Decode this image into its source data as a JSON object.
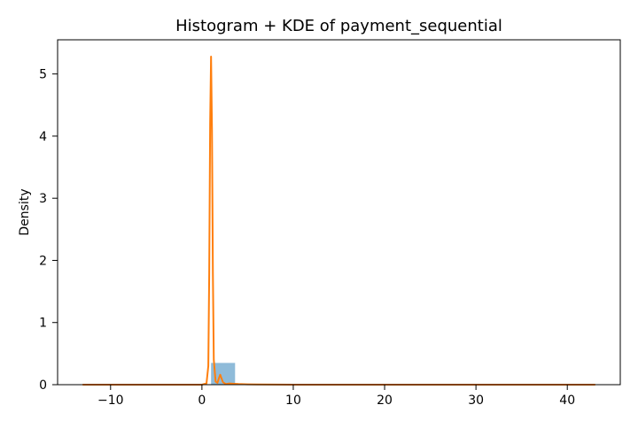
{
  "chart_data": {
    "type": "bar",
    "title": "Histogram + KDE of payment_sequential",
    "xlabel": "",
    "ylabel": "Density",
    "xlim": [
      -15.8,
      45.8
    ],
    "ylim": [
      0,
      5.55
    ],
    "x_ticks": [
      -10,
      0,
      10,
      20,
      30,
      40
    ],
    "y_ticks": [
      0,
      1,
      2,
      3,
      4,
      5
    ],
    "grid": false,
    "legend": "none",
    "colors": {
      "histogram": "#1f77b4",
      "kde": "#ff7f0e"
    },
    "histogram_bins": [
      {
        "x0": 1.0,
        "x1": 3.63,
        "density": 0.35
      },
      {
        "x0": 3.63,
        "x1": 6.26,
        "density": 0.012
      },
      {
        "x0": 6.26,
        "x1": 8.89,
        "density": 0.004
      },
      {
        "x0": 8.89,
        "x1": 11.52,
        "density": 0.002
      },
      {
        "x0": 11.52,
        "x1": 14.15,
        "density": 0.001
      },
      {
        "x0": 14.15,
        "x1": 16.78,
        "density": 0.0005
      },
      {
        "x0": 16.78,
        "x1": 19.41,
        "density": 0.0003
      },
      {
        "x0": 19.41,
        "x1": 22.04,
        "density": 0.0002
      },
      {
        "x0": 22.04,
        "x1": 24.67,
        "density": 0.0001
      },
      {
        "x0": 24.67,
        "x1": 27.3,
        "density": 0.0001
      }
    ],
    "kde_series": {
      "x": [
        -13.0,
        -5.0,
        0.0,
        0.5,
        0.7,
        0.8,
        0.9,
        1.0,
        1.1,
        1.2,
        1.3,
        1.5,
        1.7,
        1.9,
        2.0,
        2.1,
        2.3,
        2.6,
        3.0,
        3.5,
        4.0,
        5.0,
        6.0,
        8.0,
        10.0,
        20.0,
        30.0,
        43.0
      ],
      "y": [
        0.0,
        0.0,
        0.0,
        0.02,
        0.3,
        1.8,
        4.2,
        5.28,
        4.1,
        1.8,
        0.4,
        0.05,
        0.03,
        0.12,
        0.16,
        0.12,
        0.04,
        0.01,
        0.02,
        0.015,
        0.01,
        0.005,
        0.003,
        0.001,
        0.0,
        0.0,
        0.0,
        0.0
      ]
    }
  }
}
